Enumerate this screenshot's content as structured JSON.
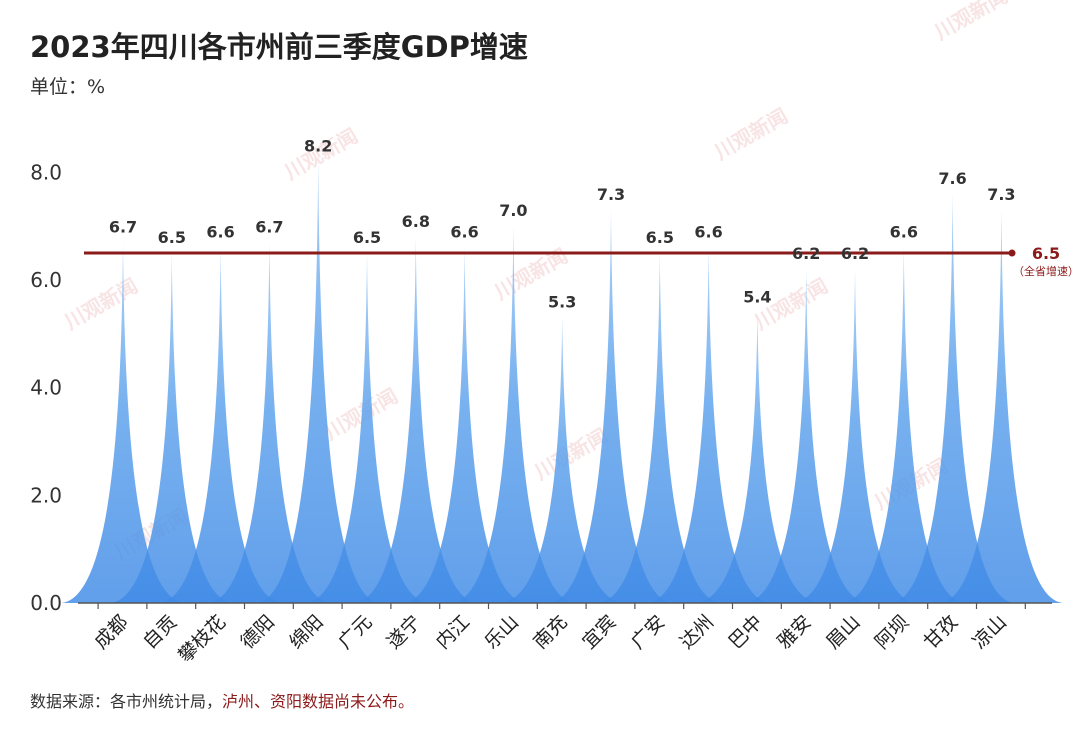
{
  "title": "2023年四川各市州前三季度GDP增速",
  "unit_label": "单位：%",
  "footer": {
    "source": "数据来源：各市州统计局，",
    "note": "泸州、资阳数据尚未公布。"
  },
  "watermark": "川观新闻",
  "colors": {
    "peak": "#4a94ea",
    "peak_light": "#7fb6f2",
    "reference": "#8b1a1a",
    "axis": "#555555"
  },
  "chart_data": {
    "type": "area",
    "title": "2023年四川各市州前三季度GDP增速",
    "ylabel": "单位：%",
    "xlabel": "",
    "ylim": [
      0,
      8.6
    ],
    "yticks": [
      "0.0",
      "2.0",
      "4.0",
      "6.0",
      "8.0"
    ],
    "categories": [
      "成都",
      "自贡",
      "攀枝花",
      "德阳",
      "绵阳",
      "广元",
      "遂宁",
      "内江",
      "乐山",
      "南充",
      "宜宾",
      "广安",
      "达州",
      "巴中",
      "雅安",
      "眉山",
      "阿坝",
      "甘孜",
      "凉山"
    ],
    "values": [
      6.7,
      6.5,
      6.6,
      6.7,
      8.2,
      6.5,
      6.8,
      6.6,
      7.0,
      5.3,
      7.3,
      6.5,
      6.6,
      5.4,
      6.2,
      6.2,
      6.6,
      7.6,
      7.3
    ],
    "value_labels": [
      "6.7",
      "6.5",
      "6.6",
      "6.7",
      "8.2",
      "6.5",
      "6.8",
      "6.6",
      "7.0",
      "5.3",
      "7.3",
      "6.5",
      "6.6",
      "5.4",
      "6.2",
      "6.2",
      "6.6",
      "7.6",
      "7.3"
    ],
    "reference_line": {
      "value": 6.5,
      "label": "6.5",
      "sublabel": "（全省增速）"
    }
  }
}
